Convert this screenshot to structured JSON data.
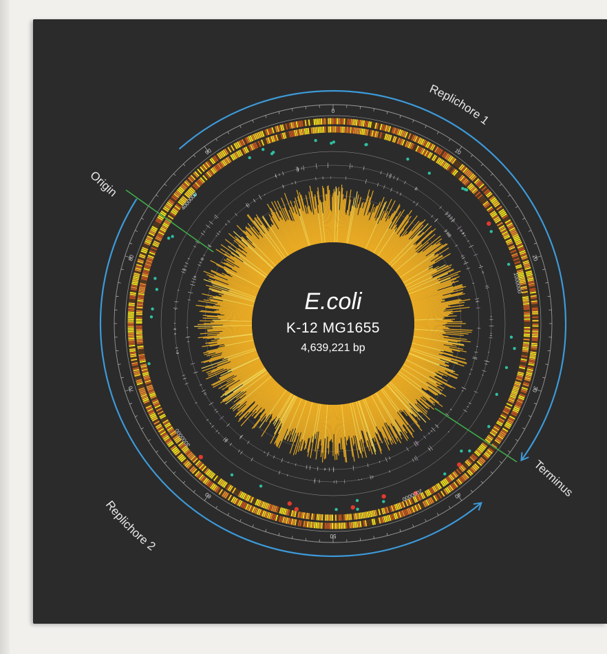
{
  "center": {
    "organism": "E.coli",
    "strain": "K-12  MG1655",
    "size": "4,639,221 bp"
  },
  "genome_length_bp": 4639221,
  "labels": {
    "replichore1": "Replichore 1",
    "replichore2": "Replichore 2",
    "origin": "Origin",
    "terminus": "Terminus"
  },
  "minute_ticks": [
    "0",
    "10",
    "20",
    "30",
    "40",
    "50",
    "60",
    "70",
    "80",
    "90"
  ],
  "bp_ticks": [
    "1000000",
    "2000000",
    "3000000",
    "4000000"
  ],
  "colors": {
    "background": "#2b2b2b",
    "replichore_arc": "#3d9ad9",
    "origin_terminus_line": "#3fae49",
    "gene_band_yellow": "#f2e11d",
    "gene_band_orange": "#e8892a",
    "gc_skew_fill": "#f5b324",
    "trna_marker": "#2fbfa0",
    "rrna_marker": "#e03a2e",
    "center_disc": "#2b2b2b"
  }
}
